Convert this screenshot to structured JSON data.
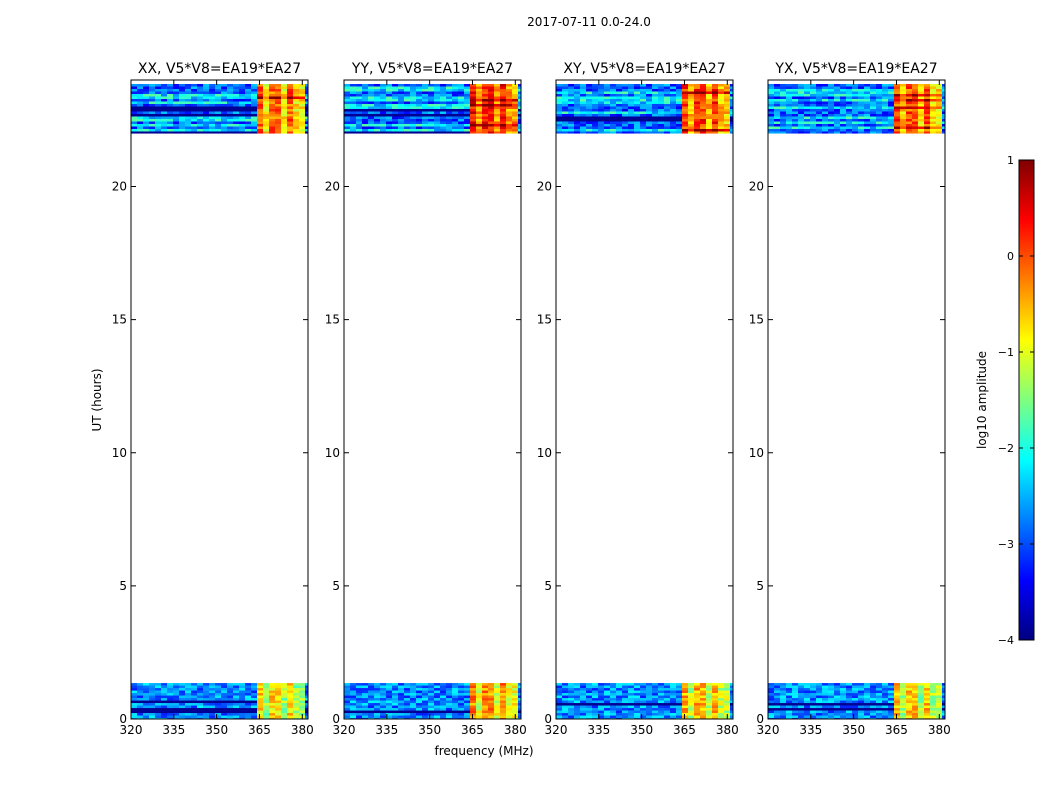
{
  "suptitle": "2017-07-11 0.0-24.0",
  "chart_data": {
    "type": "heatmap",
    "xlabel": "frequency (MHz)",
    "ylabel": "UT (hours)",
    "xlim": [
      320,
      382
    ],
    "ylim": [
      0,
      24
    ],
    "xticks": [
      320,
      335,
      350,
      365,
      380
    ],
    "yticks": [
      0,
      5,
      10,
      15,
      20
    ],
    "data_time_ranges_hours": [
      [
        0.0,
        1.35
      ],
      [
        22.0,
        23.85
      ]
    ],
    "bright_band_mhz": [
      363.5,
      380
    ],
    "colorbar": {
      "label": "log10 amplitude",
      "range": [
        -4,
        1
      ],
      "ticks": [
        "1",
        "0",
        "−1",
        "−2",
        "−3",
        "−4"
      ],
      "colors": [
        "#00007f",
        "#0000ff",
        "#007fff",
        "#00ffff",
        "#7fff7f",
        "#ffff00",
        "#ff7f00",
        "#ff0000",
        "#7f0000"
      ]
    },
    "panels": [
      {
        "title": "XX, V5*V8=EA19*EA27",
        "bright_level": 0.72
      },
      {
        "title": "YY, V5*V8=EA19*EA27",
        "bright_level": 0.8
      },
      {
        "title": "XY, V5*V8=EA19*EA27",
        "bright_level": 0.76
      },
      {
        "title": "YX, V5*V8=EA19*EA27",
        "bright_level": 0.74
      }
    ]
  }
}
